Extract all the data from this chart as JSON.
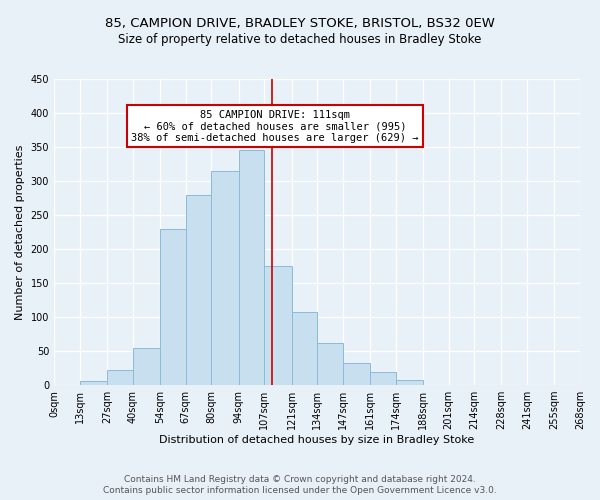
{
  "title_line1": "85, CAMPION DRIVE, BRADLEY STOKE, BRISTOL, BS32 0EW",
  "title_line2": "Size of property relative to detached houses in Bradley Stoke",
  "xlabel": "Distribution of detached houses by size in Bradley Stoke",
  "ylabel": "Number of detached properties",
  "bar_edges": [
    0,
    13,
    27,
    40,
    54,
    67,
    80,
    94,
    107,
    121,
    134,
    147,
    161,
    174,
    188,
    201,
    214,
    228,
    241,
    255,
    268
  ],
  "bar_heights": [
    0,
    6,
    22,
    55,
    230,
    280,
    315,
    345,
    175,
    108,
    62,
    32,
    19,
    8,
    0,
    0,
    0,
    0,
    0,
    0
  ],
  "bar_color": "#c8dff0",
  "bar_edgecolor": "#8bbbd8",
  "vline_x": 111,
  "vline_color": "#cc0000",
  "annotation_title": "85 CAMPION DRIVE: 111sqm",
  "annotation_line2": "← 60% of detached houses are smaller (995)",
  "annotation_line3": "38% of semi-detached houses are larger (629) →",
  "annotation_box_edgecolor": "#cc0000",
  "annotation_box_facecolor": "#ffffff",
  "xlim": [
    0,
    268
  ],
  "ylim": [
    0,
    450
  ],
  "yticks": [
    0,
    50,
    100,
    150,
    200,
    250,
    300,
    350,
    400,
    450
  ],
  "xtick_labels": [
    "0sqm",
    "13sqm",
    "27sqm",
    "40sqm",
    "54sqm",
    "67sqm",
    "80sqm",
    "94sqm",
    "107sqm",
    "121sqm",
    "134sqm",
    "147sqm",
    "161sqm",
    "174sqm",
    "188sqm",
    "201sqm",
    "214sqm",
    "228sqm",
    "241sqm",
    "255sqm",
    "268sqm"
  ],
  "xtick_positions": [
    0,
    13,
    27,
    40,
    54,
    67,
    80,
    94,
    107,
    121,
    134,
    147,
    161,
    174,
    188,
    201,
    214,
    228,
    241,
    255,
    268
  ],
  "footer_line1": "Contains HM Land Registry data © Crown copyright and database right 2024.",
  "footer_line2": "Contains public sector information licensed under the Open Government Licence v3.0.",
  "bg_color": "#e8f0f8",
  "plot_bg_color": "#e8f0f8",
  "grid_color": "#ffffff",
  "title_fontsize": 9.5,
  "subtitle_fontsize": 8.5,
  "axis_label_fontsize": 8,
  "tick_fontsize": 7,
  "footer_fontsize": 6.5,
  "annotation_fontsize": 7.5
}
